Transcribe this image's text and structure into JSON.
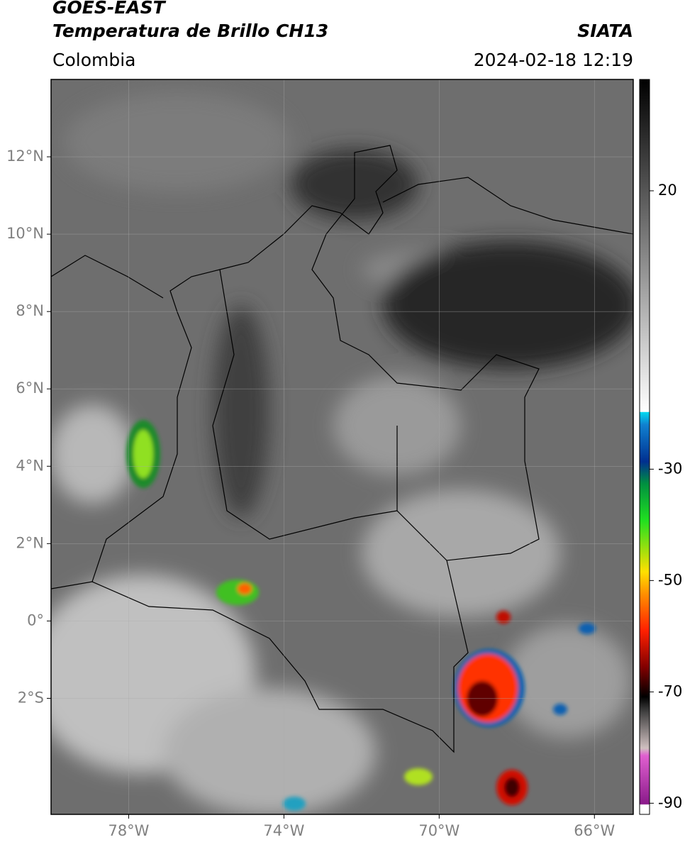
{
  "header": {
    "title": "GOES-EAST",
    "product": "Temperatura de Brillo CH13",
    "source": "SIATA",
    "region": "Colombia",
    "datetime": "2024-02-18 12:19"
  },
  "map": {
    "lon_range": [
      -80,
      -65
    ],
    "lat_range": [
      -5,
      14
    ],
    "lat_ticks": [
      {
        "value": 12,
        "label": "12°N"
      },
      {
        "value": 10,
        "label": "10°N"
      },
      {
        "value": 8,
        "label": "8°N"
      },
      {
        "value": 6,
        "label": "6°N"
      },
      {
        "value": 4,
        "label": "4°N"
      },
      {
        "value": 2,
        "label": "2°N"
      },
      {
        "value": 0,
        "label": "0°"
      },
      {
        "value": -2,
        "label": "2°S"
      }
    ],
    "lon_ticks": [
      {
        "value": -78,
        "label": "78°W"
      },
      {
        "value": -74,
        "label": "74°W"
      },
      {
        "value": -70,
        "label": "70°W"
      },
      {
        "value": -66,
        "label": "66°W"
      }
    ]
  },
  "colorbar": {
    "range": [
      -92,
      40
    ],
    "ticks": [
      20,
      -30,
      -50,
      -70,
      -90
    ]
  }
}
